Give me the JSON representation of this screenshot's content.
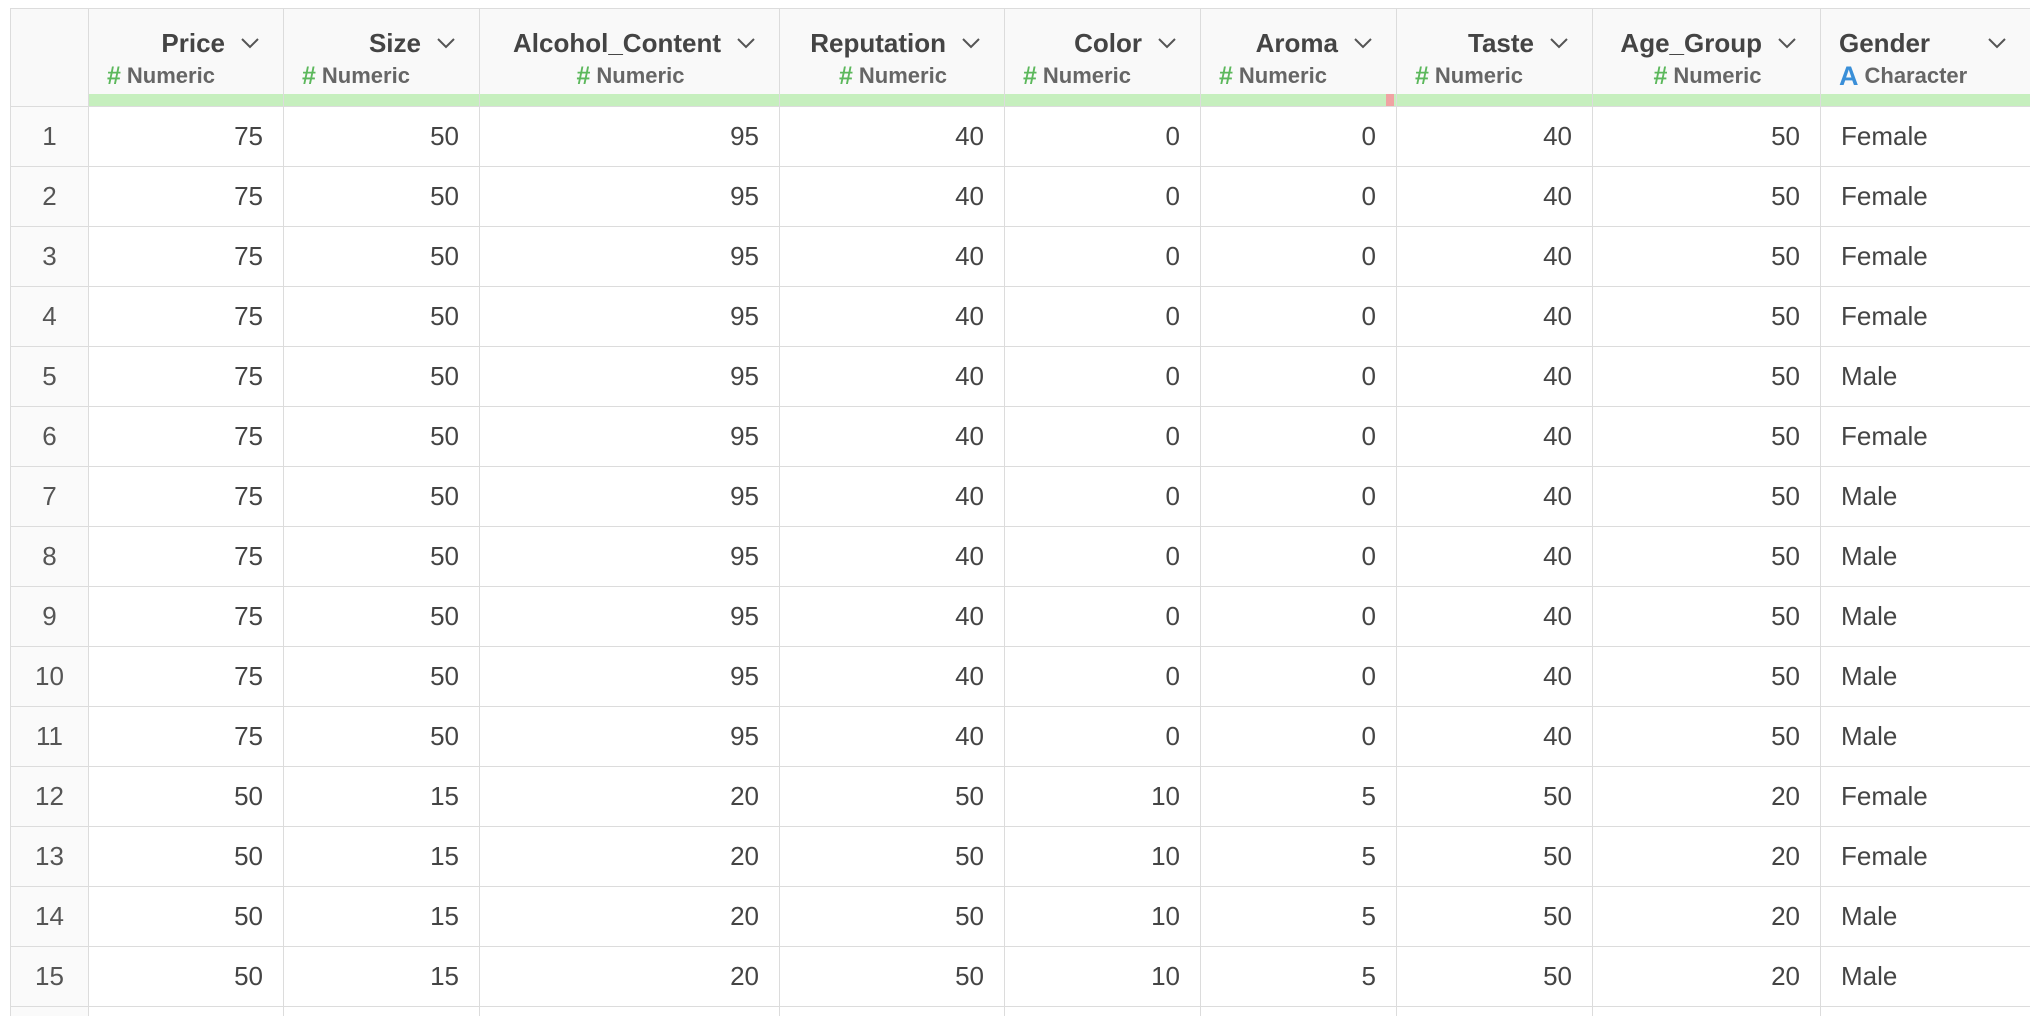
{
  "columns": [
    {
      "name": "Price",
      "type_label": "Numeric",
      "type_icon": "#"
    },
    {
      "name": "Size",
      "type_label": "Numeric",
      "type_icon": "#"
    },
    {
      "name": "Alcohol_Content",
      "type_label": "Numeric",
      "type_icon": "#"
    },
    {
      "name": "Reputation",
      "type_label": "Numeric",
      "type_icon": "#"
    },
    {
      "name": "Color",
      "type_label": "Numeric",
      "type_icon": "#"
    },
    {
      "name": "Aroma",
      "type_label": "Numeric",
      "type_icon": "#"
    },
    {
      "name": "Taste",
      "type_label": "Numeric",
      "type_icon": "#"
    },
    {
      "name": "Age_Group",
      "type_label": "Numeric",
      "type_icon": "#"
    },
    {
      "name": "Gender",
      "type_label": "Character",
      "type_icon": "A"
    }
  ],
  "rows": [
    {
      "n": "1",
      "cells": [
        "75",
        "50",
        "95",
        "40",
        "0",
        "0",
        "40",
        "50",
        "Female"
      ]
    },
    {
      "n": "2",
      "cells": [
        "75",
        "50",
        "95",
        "40",
        "0",
        "0",
        "40",
        "50",
        "Female"
      ]
    },
    {
      "n": "3",
      "cells": [
        "75",
        "50",
        "95",
        "40",
        "0",
        "0",
        "40",
        "50",
        "Female"
      ]
    },
    {
      "n": "4",
      "cells": [
        "75",
        "50",
        "95",
        "40",
        "0",
        "0",
        "40",
        "50",
        "Female"
      ]
    },
    {
      "n": "5",
      "cells": [
        "75",
        "50",
        "95",
        "40",
        "0",
        "0",
        "40",
        "50",
        "Male"
      ]
    },
    {
      "n": "6",
      "cells": [
        "75",
        "50",
        "95",
        "40",
        "0",
        "0",
        "40",
        "50",
        "Female"
      ]
    },
    {
      "n": "7",
      "cells": [
        "75",
        "50",
        "95",
        "40",
        "0",
        "0",
        "40",
        "50",
        "Male"
      ]
    },
    {
      "n": "8",
      "cells": [
        "75",
        "50",
        "95",
        "40",
        "0",
        "0",
        "40",
        "50",
        "Male"
      ]
    },
    {
      "n": "9",
      "cells": [
        "75",
        "50",
        "95",
        "40",
        "0",
        "0",
        "40",
        "50",
        "Male"
      ]
    },
    {
      "n": "10",
      "cells": [
        "75",
        "50",
        "95",
        "40",
        "0",
        "0",
        "40",
        "50",
        "Male"
      ]
    },
    {
      "n": "11",
      "cells": [
        "75",
        "50",
        "95",
        "40",
        "0",
        "0",
        "40",
        "50",
        "Male"
      ]
    },
    {
      "n": "12",
      "cells": [
        "50",
        "15",
        "20",
        "50",
        "10",
        "5",
        "50",
        "20",
        "Female"
      ]
    },
    {
      "n": "13",
      "cells": [
        "50",
        "15",
        "20",
        "50",
        "10",
        "5",
        "50",
        "20",
        "Female"
      ]
    },
    {
      "n": "14",
      "cells": [
        "50",
        "15",
        "20",
        "50",
        "10",
        "5",
        "50",
        "20",
        "Male"
      ]
    },
    {
      "n": "15",
      "cells": [
        "50",
        "15",
        "20",
        "50",
        "10",
        "5",
        "50",
        "20",
        "Male"
      ]
    }
  ],
  "colors": {
    "numeric_icon": "#5cb85c",
    "character_icon": "#3a8fd8",
    "quality_ok": "#c6efbe",
    "quality_missing": "#f0a3a3"
  }
}
